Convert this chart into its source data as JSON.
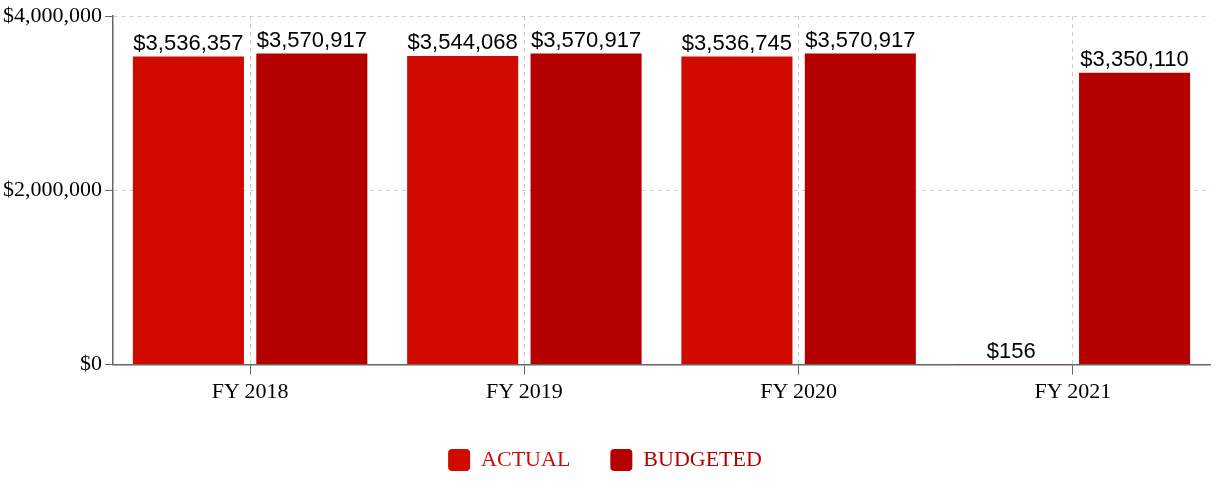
{
  "chart_data": {
    "type": "bar",
    "categories": [
      "FY 2018",
      "FY 2019",
      "FY 2020",
      "FY 2021"
    ],
    "series": [
      {
        "name": "ACTUAL",
        "color": "#d10a00",
        "values": [
          3536357,
          3544068,
          3536745,
          156
        ],
        "value_labels": [
          "$3,536,357",
          "$3,544,068",
          "$3,536,745",
          "$156"
        ]
      },
      {
        "name": "BUDGETED",
        "color": "#b50000",
        "values": [
          3570917,
          3570917,
          3570917,
          3350110
        ],
        "value_labels": [
          "$3,570,917",
          "$3,570,917",
          "$3,570,917",
          "$3,350,110"
        ]
      }
    ],
    "ylim": [
      0,
      4000000
    ],
    "yticks": [
      {
        "value": 0,
        "label": "$0"
      },
      {
        "value": 2000000,
        "label": "$2,000,000"
      },
      {
        "value": 4000000,
        "label": "$4,000,000"
      }
    ],
    "grid": true,
    "legend": "bottom"
  }
}
